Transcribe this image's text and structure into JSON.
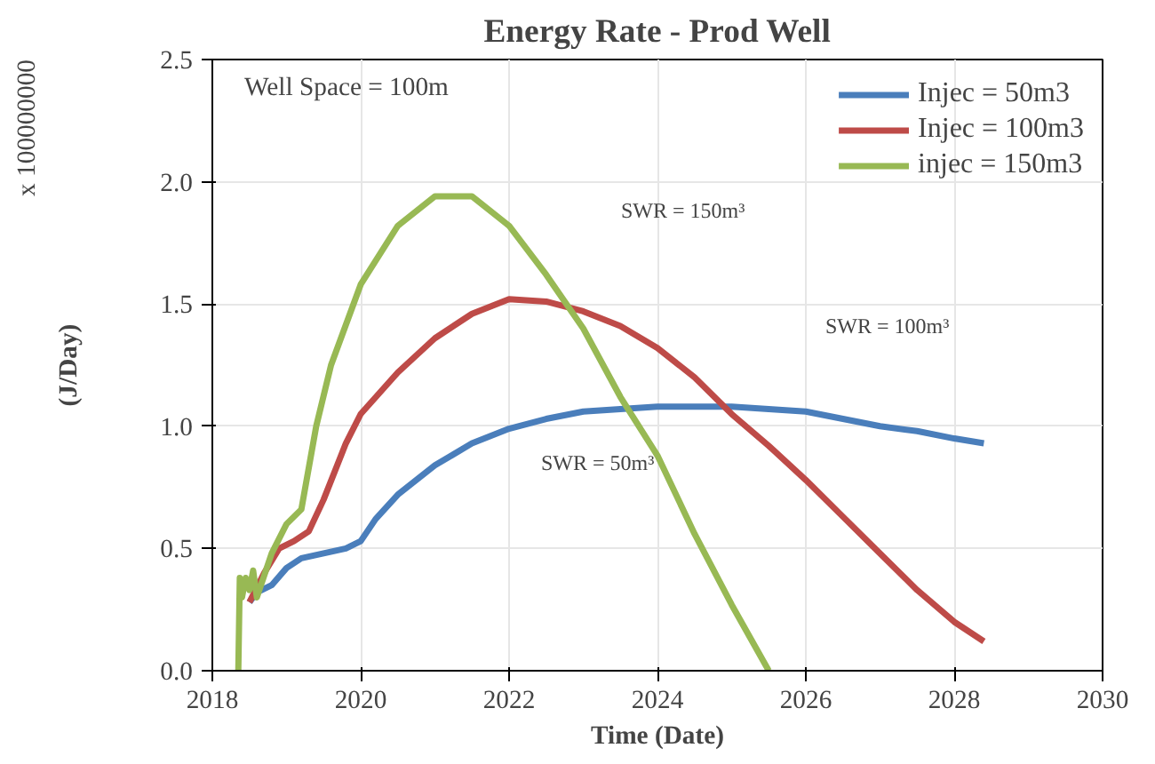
{
  "chart_data": {
    "type": "line",
    "title": "Energy Rate - Prod Well",
    "xlabel": "Time (Date)",
    "ylabel": "(J/Day)",
    "xlim": [
      2018,
      2030
    ],
    "xticks": [
      2018,
      2020,
      2022,
      2024,
      2026,
      2028,
      2030
    ],
    "ylim": [
      0,
      2.5
    ],
    "yticks": [
      {
        "value": 0,
        "label": "0.0"
      },
      0.5,
      {
        "value": 1,
        "label": "1.0"
      },
      1.5,
      {
        "value": 2,
        "label": "2.0"
      },
      2.5
    ],
    "grid": true,
    "legend": "top right",
    "marker": "none",
    "line_style": "solid",
    "annotations": [
      "x 100000000",
      "Well Space = 100m",
      "SWR = 150m³",
      "SWR = 100m³",
      "SWR = 50m³"
    ],
    "series": [
      {
        "name": "Injec = 50m3",
        "color": "#4a7ebb",
        "x": [
          2018.5,
          2018.6,
          2018.8,
          2019.0,
          2019.2,
          2019.5,
          2019.8,
          2020.0,
          2020.2,
          2020.5,
          2021.0,
          2021.5,
          2022.0,
          2022.5,
          2023.0,
          2023.5,
          2024.0,
          2024.5,
          2025.0,
          2025.5,
          2026.0,
          2026.5,
          2027.0,
          2027.5,
          2028.0,
          2028.4
        ],
        "values": [
          0.28,
          0.32,
          0.35,
          0.42,
          0.46,
          0.48,
          0.5,
          0.53,
          0.62,
          0.72,
          0.84,
          0.93,
          0.99,
          1.03,
          1.06,
          1.07,
          1.08,
          1.08,
          1.08,
          1.07,
          1.06,
          1.03,
          1.0,
          0.98,
          0.95,
          0.93
        ]
      },
      {
        "name": "Injec = 100m3",
        "color": "#be4b48",
        "x": [
          2018.5,
          2018.7,
          2018.9,
          2019.1,
          2019.3,
          2019.5,
          2019.8,
          2020.0,
          2020.5,
          2021.0,
          2021.5,
          2022.0,
          2022.5,
          2023.0,
          2023.5,
          2024.0,
          2024.5,
          2025.0,
          2025.5,
          2026.0,
          2026.5,
          2027.0,
          2027.5,
          2028.0,
          2028.4
        ],
        "values": [
          0.28,
          0.4,
          0.5,
          0.53,
          0.57,
          0.7,
          0.93,
          1.05,
          1.22,
          1.36,
          1.46,
          1.52,
          1.51,
          1.47,
          1.41,
          1.32,
          1.2,
          1.05,
          0.92,
          0.78,
          0.63,
          0.48,
          0.33,
          0.2,
          0.12
        ]
      },
      {
        "name": "injec = 150m3",
        "color": "#98b954",
        "x": [
          2018.35,
          2018.37,
          2018.4,
          2018.45,
          2018.5,
          2018.55,
          2018.6,
          2018.8,
          2019.0,
          2019.2,
          2019.4,
          2019.6,
          2020.0,
          2020.5,
          2021.0,
          2021.5,
          2022.0,
          2022.5,
          2023.0,
          2023.5,
          2024.0,
          2024.5,
          2025.0,
          2025.5
        ],
        "values": [
          0.0,
          0.38,
          0.3,
          0.38,
          0.33,
          0.41,
          0.3,
          0.48,
          0.6,
          0.66,
          1.0,
          1.25,
          1.58,
          1.82,
          1.94,
          1.94,
          1.82,
          1.62,
          1.4,
          1.12,
          0.88,
          0.56,
          0.27,
          0.0
        ]
      }
    ]
  }
}
